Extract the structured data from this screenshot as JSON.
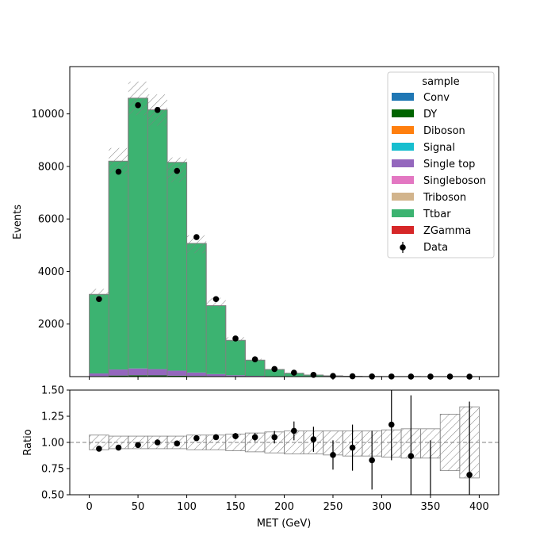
{
  "chart_data": [
    {
      "type": "stacked-histogram",
      "xlabel": "",
      "ylabel": "Events",
      "xlim": [
        -20,
        420
      ],
      "ylim": [
        0,
        11800
      ],
      "y_ticks": [
        2000,
        4000,
        6000,
        8000,
        10000
      ],
      "bin_edges": [
        0,
        20,
        40,
        60,
        80,
        100,
        120,
        140,
        160,
        180,
        200,
        220,
        240,
        260,
        280,
        300,
        320,
        340,
        360,
        380,
        400
      ],
      "legend": {
        "title": "sample",
        "placement": "top-right"
      },
      "series": [
        {
          "name": "Conv",
          "color": "#1f77b4",
          "values": [
            0,
            0,
            0,
            0,
            0,
            0,
            0,
            0,
            0,
            0,
            0,
            0,
            0,
            0,
            0,
            0,
            0,
            0,
            0,
            0
          ]
        },
        {
          "name": "DY",
          "color": "#006400",
          "values": [
            20,
            40,
            50,
            45,
            35,
            25,
            15,
            8,
            4,
            2,
            1,
            0,
            0,
            0,
            0,
            0,
            0,
            0,
            0,
            0
          ]
        },
        {
          "name": "Diboson",
          "color": "#ff7f0e",
          "values": [
            0,
            0,
            0,
            0,
            0,
            0,
            0,
            0,
            0,
            0,
            0,
            0,
            0,
            0,
            0,
            0,
            0,
            0,
            0,
            0
          ]
        },
        {
          "name": "Signal",
          "color": "#17becf",
          "values": [
            0,
            0,
            0,
            0,
            0,
            0,
            0,
            0,
            0,
            0,
            0,
            0,
            0,
            0,
            0,
            0,
            0,
            0,
            0,
            0
          ]
        },
        {
          "name": "Single top",
          "color": "#9467bd",
          "values": [
            100,
            230,
            260,
            240,
            190,
            130,
            80,
            45,
            25,
            12,
            6,
            3,
            2,
            1,
            1,
            0,
            0,
            0,
            0,
            0
          ]
        },
        {
          "name": "Singleboson",
          "color": "#e377c2",
          "values": [
            0,
            0,
            0,
            0,
            0,
            0,
            0,
            0,
            0,
            0,
            0,
            0,
            0,
            0,
            0,
            0,
            0,
            0,
            0,
            0
          ]
        },
        {
          "name": "Triboson",
          "color": "#d2b48c",
          "values": [
            0,
            0,
            0,
            0,
            0,
            0,
            0,
            0,
            0,
            0,
            0,
            0,
            0,
            0,
            0,
            0,
            0,
            0,
            0,
            0
          ]
        },
        {
          "name": "Ttbar",
          "color": "#3cb371",
          "values": [
            3010,
            7930,
            10290,
            9870,
            7930,
            4915,
            2605,
            1327,
            597,
            256,
            123,
            57,
            28,
            14,
            7,
            3,
            2,
            1,
            1,
            0
          ]
        },
        {
          "name": "ZGamma",
          "color": "#d62728",
          "values": [
            0,
            0,
            0,
            0,
            0,
            0,
            0,
            0,
            0,
            0,
            0,
            0,
            0,
            0,
            0,
            0,
            0,
            0,
            0,
            0
          ]
        }
      ],
      "mc_total": [
        3130,
        8200,
        10600,
        10155,
        8155,
        5070,
        2700,
        1380,
        626,
        270,
        130,
        60,
        30,
        15,
        8,
        3,
        2,
        1,
        1,
        0
      ],
      "uncertainty_band": {
        "lower": [
          2920,
          7700,
          9950,
          9550,
          7400,
          4700,
          2600,
          1300,
          570,
          245,
          115,
          54,
          26,
          13,
          7,
          3,
          2,
          1,
          1,
          0
        ],
        "upper": [
          3340,
          8700,
          11230,
          10740,
          8340,
          5380,
          3000,
          1500,
          680,
          290,
          145,
          66,
          33,
          17,
          9,
          4,
          2,
          1,
          1,
          0
        ]
      },
      "data": {
        "name": "Data",
        "x": [
          10,
          30,
          50,
          70,
          90,
          110,
          130,
          150,
          170,
          190,
          210,
          230,
          250,
          270,
          290,
          310,
          330,
          350,
          370,
          390
        ],
        "values": [
          2950,
          7800,
          10330,
          10150,
          7830,
          5310,
          2950,
          1450,
          660,
          290,
          150,
          65,
          26,
          14,
          7,
          4,
          2,
          1,
          1,
          0
        ]
      }
    },
    {
      "type": "ratio",
      "xlabel": "MET (GeV)",
      "ylabel": "Ratio",
      "xlim": [
        -20,
        420
      ],
      "ylim": [
        0.5,
        1.5
      ],
      "x_ticks": [
        0,
        50,
        100,
        150,
        200,
        250,
        300,
        350,
        400
      ],
      "y_ticks": [
        "0.50",
        "0.75",
        "1.00",
        "1.25",
        "1.50"
      ],
      "reference_line": 1.0,
      "band": {
        "lower": [
          0.93,
          0.94,
          0.94,
          0.94,
          0.94,
          0.93,
          0.93,
          0.92,
          0.91,
          0.9,
          0.89,
          0.89,
          0.88,
          0.87,
          0.87,
          0.86,
          0.85,
          0.85,
          0.73,
          0.66
        ],
        "upper": [
          1.07,
          1.06,
          1.06,
          1.06,
          1.06,
          1.07,
          1.07,
          1.08,
          1.09,
          1.1,
          1.11,
          1.11,
          1.11,
          1.11,
          1.11,
          1.12,
          1.13,
          1.13,
          1.27,
          1.34
        ]
      },
      "points": {
        "x": [
          10,
          30,
          50,
          70,
          90,
          110,
          130,
          150,
          170,
          190,
          210,
          230,
          250,
          270,
          290,
          310,
          330,
          350,
          370,
          390
        ],
        "y": [
          0.94,
          0.95,
          0.975,
          1.0,
          0.99,
          1.04,
          1.05,
          1.06,
          1.05,
          1.05,
          1.11,
          1.03,
          0.88,
          0.95,
          0.83,
          1.17,
          0.87,
          null,
          null,
          0.69
        ],
        "err": [
          0.01,
          0.01,
          0.01,
          0.01,
          0.01,
          0.015,
          0.02,
          0.03,
          0.04,
          0.06,
          0.09,
          0.12,
          0.14,
          0.22,
          0.28,
          0.34,
          0.58,
          null,
          null,
          0.7
        ]
      }
    }
  ]
}
